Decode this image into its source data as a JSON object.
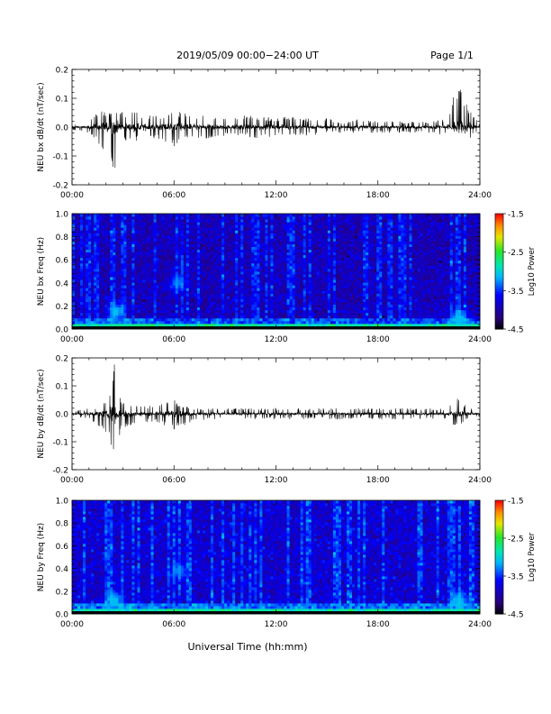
{
  "header": {
    "title": "2019/05/09  00:00−24:00 UT",
    "page": "Page 1/1"
  },
  "xaxis_label": "Universal Time (hh:mm)",
  "chart_data": [
    {
      "type": "line",
      "id": "bx-dbdt",
      "ylabel": "NEU bx dB/dt (nT/sec)",
      "xlim": [
        0,
        24
      ],
      "ylim": [
        -0.2,
        0.2
      ],
      "xticks": [
        "00:00",
        "06:00",
        "12:00",
        "18:00",
        "24:00"
      ],
      "xtick_values": [
        0,
        6,
        12,
        18,
        24
      ],
      "yticks": [
        "-0.2",
        "-0.1",
        "0.0",
        "0.1",
        "0.2"
      ],
      "ytick_values": [
        -0.2,
        -0.1,
        0.0,
        0.1,
        0.2
      ],
      "series": [
        {
          "x": [
            0,
            1,
            1.5,
            2,
            2.2,
            2.5,
            2.7,
            3,
            3.5,
            4,
            5,
            6,
            7,
            8,
            9,
            10,
            11,
            12,
            13,
            14,
            15,
            16,
            17,
            18,
            19,
            20,
            21,
            22,
            22.5,
            22.8,
            23,
            23.5,
            24
          ],
          "envelope_max": [
            0.01,
            0.02,
            0.05,
            0.06,
            0.05,
            0.07,
            0.08,
            0.05,
            0.06,
            0.05,
            0.04,
            0.06,
            0.04,
            0.04,
            0.03,
            0.04,
            0.04,
            0.03,
            0.04,
            0.03,
            0.03,
            0.02,
            0.03,
            0.02,
            0.02,
            0.02,
            0.02,
            0.03,
            0.12,
            0.15,
            0.1,
            0.05,
            0.01
          ],
          "envelope_min": [
            -0.01,
            -0.02,
            -0.06,
            -0.1,
            -0.11,
            -0.17,
            -0.08,
            -0.06,
            -0.05,
            -0.05,
            -0.04,
            -0.07,
            -0.04,
            -0.04,
            -0.03,
            -0.03,
            -0.04,
            -0.03,
            -0.03,
            -0.03,
            -0.02,
            -0.02,
            -0.02,
            -0.02,
            -0.02,
            -0.02,
            -0.02,
            -0.03,
            -0.05,
            -0.06,
            -0.08,
            -0.04,
            -0.01
          ]
        }
      ]
    },
    {
      "type": "heatmap",
      "id": "bx-freq",
      "ylabel": "NEU bx Freq (Hz)",
      "xlim": [
        0,
        24
      ],
      "ylim": [
        0,
        1.0
      ],
      "xticks": [
        "00:00",
        "06:00",
        "12:00",
        "18:00",
        "24:00"
      ],
      "xtick_values": [
        0,
        6,
        12,
        18,
        24
      ],
      "yticks": [
        "0.0",
        "0.2",
        "0.4",
        "0.6",
        "0.8",
        "1.0"
      ],
      "ytick_values": [
        0,
        0.2,
        0.4,
        0.6,
        0.8,
        1.0
      ],
      "colorbar": {
        "label": "Log10 Power",
        "range": [
          -4.5,
          -1.5
        ],
        "ticks": [
          "-1.5",
          "-2.5",
          "-3.5",
          "-4.5"
        ],
        "tick_values": [
          -1.5,
          -2.5,
          -3.5,
          -4.5
        ]
      },
      "background_level": -3.9,
      "low_freq_level": -2.8,
      "features": [
        {
          "t": 2.6,
          "f": 0.15,
          "level": -3.0
        },
        {
          "t": 6.2,
          "f": 0.4,
          "level": -3.2
        },
        {
          "t": 22.8,
          "f": 0.1,
          "level": -3.0
        }
      ]
    },
    {
      "type": "line",
      "id": "by-dbdt",
      "ylabel": "NEU by dB/dt (nT/sec)",
      "xlim": [
        0,
        24
      ],
      "ylim": [
        -0.2,
        0.2
      ],
      "xticks": [
        "00:00",
        "06:00",
        "12:00",
        "18:00",
        "24:00"
      ],
      "xtick_values": [
        0,
        6,
        12,
        18,
        24
      ],
      "yticks": [
        "-0.2",
        "-0.1",
        "0.0",
        "0.1",
        "0.2"
      ],
      "ytick_values": [
        -0.2,
        -0.1,
        0.0,
        0.1,
        0.2
      ],
      "series": [
        {
          "x": [
            0,
            1,
            1.5,
            2,
            2.3,
            2.5,
            2.7,
            3,
            3.5,
            4,
            5,
            6,
            7,
            8,
            9,
            10,
            11,
            12,
            13,
            14,
            15,
            16,
            17,
            18,
            19,
            20,
            21,
            22,
            22.5,
            22.8,
            23,
            23.5,
            24
          ],
          "envelope_max": [
            0.01,
            0.02,
            0.03,
            0.05,
            0.1,
            0.18,
            0.08,
            0.05,
            0.04,
            0.03,
            0.03,
            0.05,
            0.02,
            0.02,
            0.02,
            0.02,
            0.02,
            0.02,
            0.02,
            0.02,
            0.02,
            0.02,
            0.02,
            0.02,
            0.02,
            0.02,
            0.02,
            0.02,
            0.05,
            0.06,
            0.04,
            0.02,
            0.01
          ],
          "envelope_min": [
            -0.01,
            -0.02,
            -0.04,
            -0.07,
            -0.12,
            -0.16,
            -0.09,
            -0.05,
            -0.04,
            -0.03,
            -0.03,
            -0.06,
            -0.03,
            -0.02,
            -0.02,
            -0.02,
            -0.02,
            -0.02,
            -0.02,
            -0.02,
            -0.02,
            -0.02,
            -0.02,
            -0.02,
            -0.02,
            -0.02,
            -0.02,
            -0.02,
            -0.05,
            -0.04,
            -0.03,
            -0.02,
            -0.01
          ]
        }
      ]
    },
    {
      "type": "heatmap",
      "id": "by-freq",
      "ylabel": "NEU by Freq (Hz)",
      "xlim": [
        0,
        24
      ],
      "ylim": [
        0,
        1.0
      ],
      "xticks": [
        "00:00",
        "06:00",
        "12:00",
        "18:00",
        "24:00"
      ],
      "xtick_values": [
        0,
        6,
        12,
        18,
        24
      ],
      "yticks": [
        "0.0",
        "0.2",
        "0.4",
        "0.6",
        "0.8",
        "1.0"
      ],
      "ytick_values": [
        0,
        0.2,
        0.4,
        0.6,
        0.8,
        1.0
      ],
      "colorbar": {
        "label": "Log10 Power",
        "range": [
          -4.5,
          -1.5
        ],
        "ticks": [
          "-1.5",
          "-2.5",
          "-3.5",
          "-4.5"
        ],
        "tick_values": [
          -1.5,
          -2.5,
          -3.5,
          -4.5
        ]
      },
      "background_level": -3.8,
      "low_freq_level": -2.8,
      "features": [
        {
          "t": 2.5,
          "f": 0.12,
          "level": -3.0
        },
        {
          "t": 6.3,
          "f": 0.38,
          "level": -3.2
        },
        {
          "t": 22.8,
          "f": 0.12,
          "level": -3.0
        }
      ]
    }
  ]
}
